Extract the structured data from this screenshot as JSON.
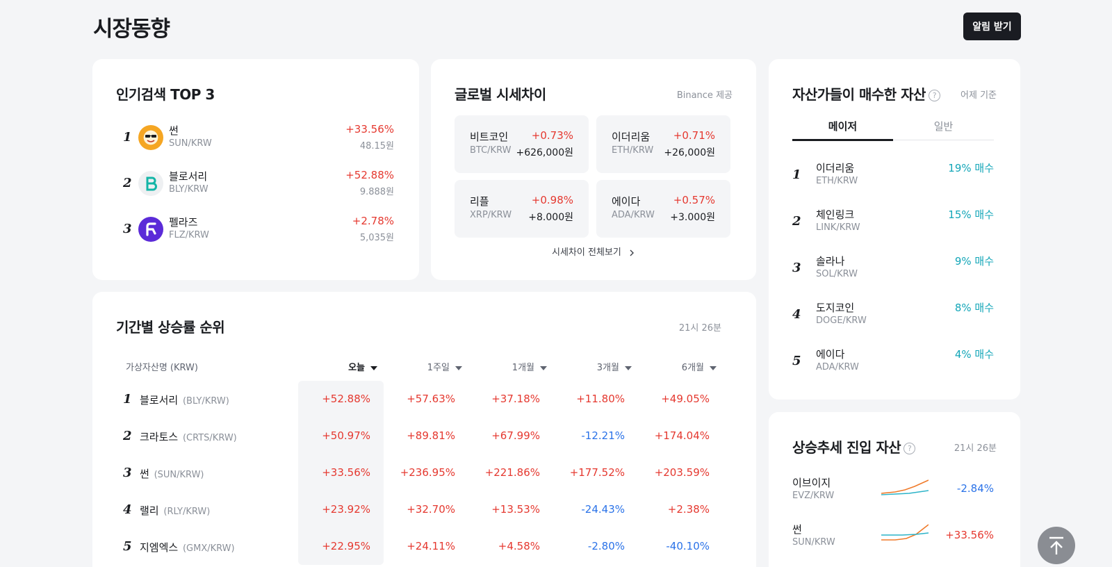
{
  "header": {
    "title": "시장동향",
    "alert_label": "알림 받기"
  },
  "popular": {
    "title": "인기검색 TOP 3",
    "items": [
      {
        "rank": "1",
        "name": "썬",
        "pair": "SUN/KRW",
        "change": "+33.56%",
        "price": "48.15원",
        "logo_color": "#f5a623"
      },
      {
        "rank": "2",
        "name": "블로서리",
        "pair": "BLY/KRW",
        "change": "+52.88%",
        "price": "9.888원",
        "logo_color": "#13b5a6"
      },
      {
        "rank": "3",
        "name": "펠라즈",
        "pair": "FLZ/KRW",
        "change": "+2.78%",
        "price": "5,035원",
        "logo_color": "#5b2bd8"
      }
    ]
  },
  "global": {
    "title": "글로벌 시세차이",
    "source": "Binance 제공",
    "items": [
      {
        "name": "비트코인",
        "pair": "BTC/KRW",
        "pct": "+0.73%",
        "diff": "+626,000원"
      },
      {
        "name": "이더리움",
        "pair": "ETH/KRW",
        "pct": "+0.71%",
        "diff": "+26,000원"
      },
      {
        "name": "리플",
        "pair": "XRP/KRW",
        "pct": "+0.98%",
        "diff": "+8.000원"
      },
      {
        "name": "에이다",
        "pair": "ADA/KRW",
        "pct": "+0.57%",
        "diff": "+3.000원"
      }
    ],
    "view_all": "시세차이 전체보기"
  },
  "period": {
    "title": "기간별 상승률 순위",
    "time": "21시 26분",
    "columns": [
      "가상자산명 (KRW)",
      "오늘",
      "1주일",
      "1개월",
      "3개월",
      "6개월"
    ],
    "rows": [
      {
        "rank": "1",
        "name": "블로서리",
        "pair": "(BLY/KRW)",
        "values": [
          "+52.88%",
          "+57.63%",
          "+37.18%",
          "+11.80%",
          "+49.05%"
        ]
      },
      {
        "rank": "2",
        "name": "크라토스",
        "pair": "(CRTS/KRW)",
        "values": [
          "+50.97%",
          "+89.81%",
          "+67.99%",
          "-12.21%",
          "+174.04%"
        ]
      },
      {
        "rank": "3",
        "name": "썬",
        "pair": "(SUN/KRW)",
        "values": [
          "+33.56%",
          "+236.95%",
          "+221.86%",
          "+177.52%",
          "+203.59%"
        ]
      },
      {
        "rank": "4",
        "name": "랠리",
        "pair": "(RLY/KRW)",
        "values": [
          "+23.92%",
          "+32.70%",
          "+13.53%",
          "-24.43%",
          "+2.38%"
        ]
      },
      {
        "rank": "5",
        "name": "지엠엑스",
        "pair": "(GMX/KRW)",
        "values": [
          "+22.95%",
          "+24.11%",
          "+4.58%",
          "-2.80%",
          "-40.10%"
        ]
      }
    ]
  },
  "investors": {
    "title": "자산가들이 매수한 자산",
    "note": "어제 기준",
    "tabs": [
      "메이저",
      "일반"
    ],
    "items": [
      {
        "rank": "1",
        "name": "이더리움",
        "pair": "ETH/KRW",
        "buy": "19% 매수"
      },
      {
        "rank": "2",
        "name": "체인링크",
        "pair": "LINK/KRW",
        "buy": "15% 매수"
      },
      {
        "rank": "3",
        "name": "솔라나",
        "pair": "SOL/KRW",
        "buy": "9% 매수"
      },
      {
        "rank": "4",
        "name": "도지코인",
        "pair": "DOGE/KRW",
        "buy": "8% 매수"
      },
      {
        "rank": "5",
        "name": "에이다",
        "pair": "ADA/KRW",
        "buy": "4% 매수"
      }
    ]
  },
  "trend": {
    "title": "상승추세 진입 자산",
    "time": "21시 26분",
    "items": [
      {
        "name": "이브이지",
        "pair": "EVZ/KRW",
        "change": "-2.84%"
      },
      {
        "name": "썬",
        "pair": "SUN/KRW",
        "change": "+33.56%"
      }
    ]
  },
  "icons": {
    "help": "question-circle-icon",
    "scroll_top": "arrow-up-icon",
    "sort": "caret-down-icon",
    "chevron": "chevron-right-icon"
  },
  "colors": {
    "up": "#e5382f",
    "down": "#2a72e8",
    "buy": "#13a6b8"
  }
}
